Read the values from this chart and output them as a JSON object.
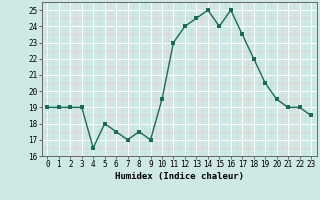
{
  "x": [
    0,
    1,
    2,
    3,
    4,
    5,
    6,
    7,
    8,
    9,
    10,
    11,
    12,
    13,
    14,
    15,
    16,
    17,
    18,
    19,
    20,
    21,
    22,
    23
  ],
  "y": [
    19,
    19,
    19,
    19,
    16.5,
    18,
    17.5,
    17,
    17.5,
    17,
    19.5,
    23,
    24,
    24.5,
    25,
    24,
    25,
    23.5,
    22,
    20.5,
    19.5,
    19,
    19,
    18.5
  ],
  "xlabel": "Humidex (Indice chaleur)",
  "ylim": [
    16,
    25.5
  ],
  "xlim": [
    -0.5,
    23.5
  ],
  "yticks": [
    16,
    17,
    18,
    19,
    20,
    21,
    22,
    23,
    24,
    25
  ],
  "xticks": [
    0,
    1,
    2,
    3,
    4,
    5,
    6,
    7,
    8,
    9,
    10,
    11,
    12,
    13,
    14,
    15,
    16,
    17,
    18,
    19,
    20,
    21,
    22,
    23
  ],
  "xtick_labels": [
    "0",
    "1",
    "2",
    "3",
    "4",
    "5",
    "6",
    "7",
    "8",
    "9",
    "10",
    "11",
    "12",
    "13",
    "14",
    "15",
    "16",
    "17",
    "18",
    "19",
    "20",
    "21",
    "22",
    "23"
  ],
  "line_color": "#1a6b5a",
  "marker_size": 2.5,
  "bg_color": "#cde8e5",
  "grid_color": "#ffffff",
  "grid_minor_color": "#e8f5f4",
  "line_width": 1.0,
  "label_fontsize": 6.5,
  "tick_fontsize": 5.5
}
